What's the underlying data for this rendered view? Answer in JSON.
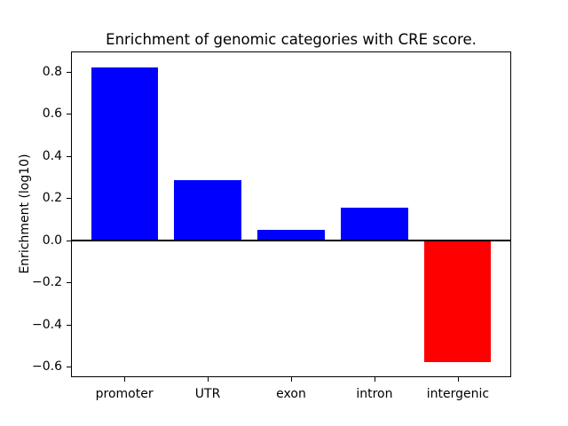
{
  "chart_data": {
    "type": "bar",
    "title": "Enrichment of genomic categories with CRE score.",
    "xlabel": "",
    "ylabel": "Enrichment (log10)",
    "categories": [
      "promoter",
      "UTR",
      "exon",
      "intron",
      "intergenic"
    ],
    "values": [
      0.82,
      0.285,
      0.05,
      0.155,
      -0.58
    ],
    "positive_color": "#0000ff",
    "negative_color": "#ff0000",
    "yticks": [
      0.8,
      0.6,
      0.4,
      0.2,
      0.0,
      -0.2,
      -0.4,
      -0.6
    ],
    "ytick_labels": [
      "0.8",
      "0.6",
      "0.4",
      "0.2",
      "0.0",
      "−0.2",
      "−0.4",
      "−0.6"
    ],
    "ylim": [
      -0.65,
      0.895
    ],
    "xlim": [
      -0.64,
      4.64
    ],
    "bar_width_fraction": 0.8,
    "grid": false,
    "legend": null,
    "zero_line": true,
    "background_color": "#ffffff",
    "spine_color": "#000000"
  }
}
